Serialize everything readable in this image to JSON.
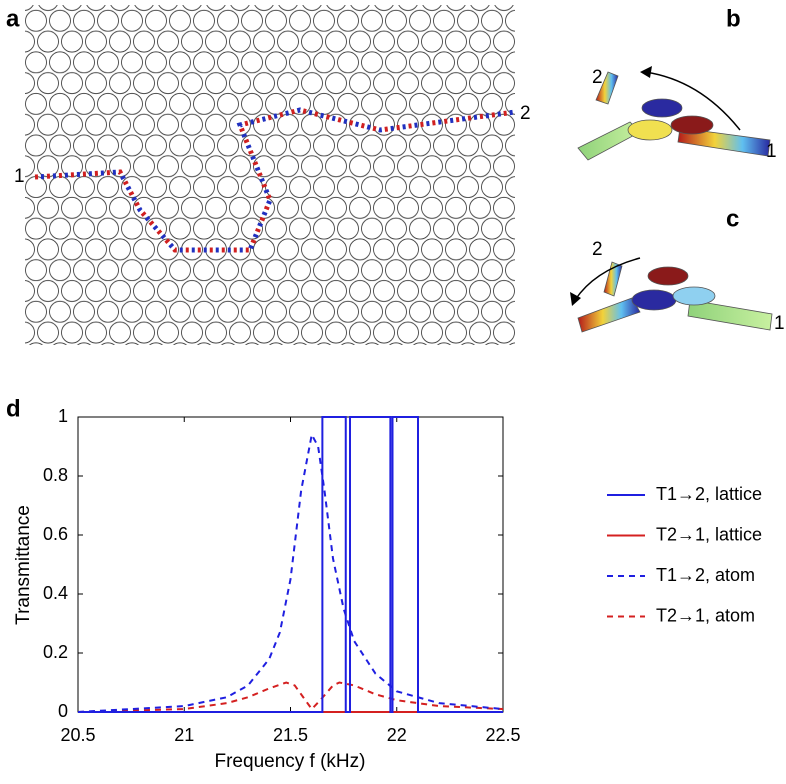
{
  "panel_labels": [
    "a",
    "b",
    "c",
    "d"
  ],
  "ports": {
    "a": [
      "1",
      "2"
    ],
    "b": [
      "2",
      "1"
    ],
    "c": [
      "2",
      "1"
    ]
  },
  "chart_data": {
    "type": "line",
    "xlabel": "Frequency f (kHz)",
    "ylabel": "Transmittance",
    "xlim": [
      20.5,
      22.5
    ],
    "xticks": [
      20.5,
      21,
      21.5,
      22,
      22.5
    ],
    "ylim": [
      0,
      1
    ],
    "yticks": [
      0,
      0.2,
      0.4,
      0.6,
      0.8,
      1
    ],
    "legend": "right",
    "series": [
      {
        "name": "T1→2, lattice",
        "color": "#1f1fe0",
        "dash": "solid",
        "x": [
          20.5,
          21.65,
          21.65,
          21.76,
          21.76,
          21.78,
          21.78,
          21.97,
          21.97,
          21.98,
          21.98,
          22.1,
          22.1,
          22.5
        ],
        "values": [
          0,
          0,
          1,
          1,
          0,
          0,
          1,
          1,
          0,
          0,
          1,
          1,
          0,
          0
        ]
      },
      {
        "name": "T2→1, lattice",
        "color": "#d42020",
        "dash": "solid",
        "x": [
          20.5,
          22.5
        ],
        "values": [
          0,
          0
        ]
      },
      {
        "name": "T1→2, atom",
        "color": "#1f1fe0",
        "dash": "dashed",
        "x": [
          20.5,
          21,
          21.2,
          21.3,
          21.4,
          21.45,
          21.5,
          21.55,
          21.6,
          21.63,
          21.66,
          21.7,
          21.75,
          21.8,
          21.9,
          22,
          22.2,
          22.5
        ],
        "values": [
          0,
          0.02,
          0.05,
          0.09,
          0.18,
          0.27,
          0.45,
          0.75,
          0.94,
          0.9,
          0.75,
          0.52,
          0.35,
          0.24,
          0.13,
          0.07,
          0.03,
          0.01
        ]
      },
      {
        "name": "T2→1, atom",
        "color": "#d42020",
        "dash": "dashed",
        "x": [
          20.5,
          21,
          21.2,
          21.3,
          21.4,
          21.48,
          21.52,
          21.56,
          21.6,
          21.64,
          21.7,
          21.73,
          21.8,
          21.9,
          22,
          22.2,
          22.5
        ],
        "values": [
          0,
          0.01,
          0.03,
          0.05,
          0.08,
          0.1,
          0.09,
          0.05,
          0.01,
          0.04,
          0.09,
          0.1,
          0.09,
          0.06,
          0.04,
          0.02,
          0.01
        ]
      }
    ]
  }
}
